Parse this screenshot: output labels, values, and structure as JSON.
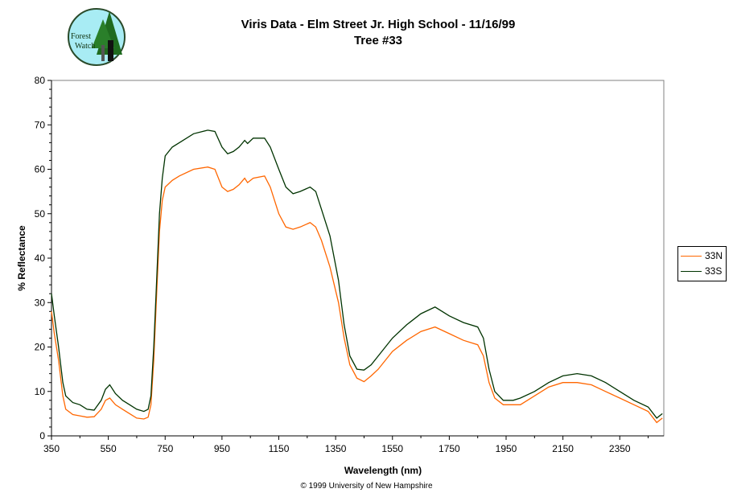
{
  "logo": {
    "text": "Forest Watch"
  },
  "copyright": "© 1999 University of New Hampshire",
  "chart_data": {
    "type": "line",
    "title": "Viris Data - Elm Street Jr. High School - 11/16/99",
    "subtitle": "Tree #33",
    "xlabel": "Wavelength (nm)",
    "ylabel": "% Reflectance",
    "xlim": [
      350,
      2505
    ],
    "ylim": [
      0,
      80
    ],
    "xticks": [
      350,
      550,
      750,
      950,
      1150,
      1350,
      1550,
      1750,
      1950,
      2150,
      2350
    ],
    "yticks": [
      0,
      10,
      20,
      30,
      40,
      50,
      60,
      70,
      80
    ],
    "grid": false,
    "legend": "right",
    "x": [
      350,
      360,
      375,
      390,
      400,
      425,
      450,
      475,
      500,
      525,
      540,
      555,
      575,
      600,
      625,
      650,
      675,
      690,
      700,
      710,
      720,
      730,
      740,
      750,
      775,
      800,
      850,
      900,
      925,
      950,
      970,
      990,
      1010,
      1030,
      1040,
      1060,
      1100,
      1120,
      1150,
      1175,
      1200,
      1225,
      1260,
      1280,
      1300,
      1330,
      1360,
      1380,
      1400,
      1425,
      1450,
      1475,
      1500,
      1550,
      1600,
      1650,
      1700,
      1750,
      1800,
      1850,
      1870,
      1890,
      1910,
      1940,
      1975,
      2000,
      2050,
      2100,
      2150,
      2200,
      2250,
      2300,
      2350,
      2400,
      2450,
      2480,
      2500
    ],
    "series": [
      {
        "name": "33N",
        "color": "#FF6600",
        "values": [
          28,
          23,
          17,
          9,
          6,
          4.8,
          4.5,
          4.2,
          4.3,
          6,
          8,
          8.5,
          7,
          6,
          5,
          4,
          3.8,
          4.2,
          7,
          17,
          32,
          46,
          53,
          56,
          57.5,
          58.5,
          60,
          60.5,
          60,
          56,
          55,
          55.5,
          56.5,
          58,
          57,
          58,
          58.5,
          56,
          50,
          47,
          46.5,
          47,
          48,
          47,
          44,
          38,
          30,
          22,
          16,
          13,
          12.2,
          13.5,
          15,
          19,
          21.5,
          23.5,
          24.5,
          23,
          21.5,
          20.5,
          18,
          12,
          8.5,
          7,
          7,
          7,
          9,
          11,
          12,
          12,
          11.5,
          10,
          8.5,
          7,
          5.5,
          3,
          4
        ]
      },
      {
        "name": "33S",
        "color": "#003300",
        "values": [
          32,
          27,
          20,
          12,
          9,
          7.5,
          7,
          6,
          5.8,
          8,
          10.5,
          11.5,
          9.5,
          8,
          7,
          6,
          5.5,
          6,
          9,
          20,
          35,
          50,
          58,
          63,
          65,
          66,
          68,
          68.8,
          68.5,
          65,
          63.5,
          64,
          65,
          66.5,
          65.8,
          67,
          67,
          65,
          60,
          56,
          54.5,
          55,
          56,
          55,
          51,
          45,
          35,
          25,
          18,
          15,
          14.8,
          16,
          18,
          22,
          25,
          27.5,
          29,
          27,
          25.5,
          24.5,
          22,
          15,
          10,
          8,
          8,
          8.5,
          10,
          12,
          13.5,
          14,
          13.5,
          12,
          10,
          8,
          6.5,
          4,
          5
        ]
      }
    ]
  }
}
